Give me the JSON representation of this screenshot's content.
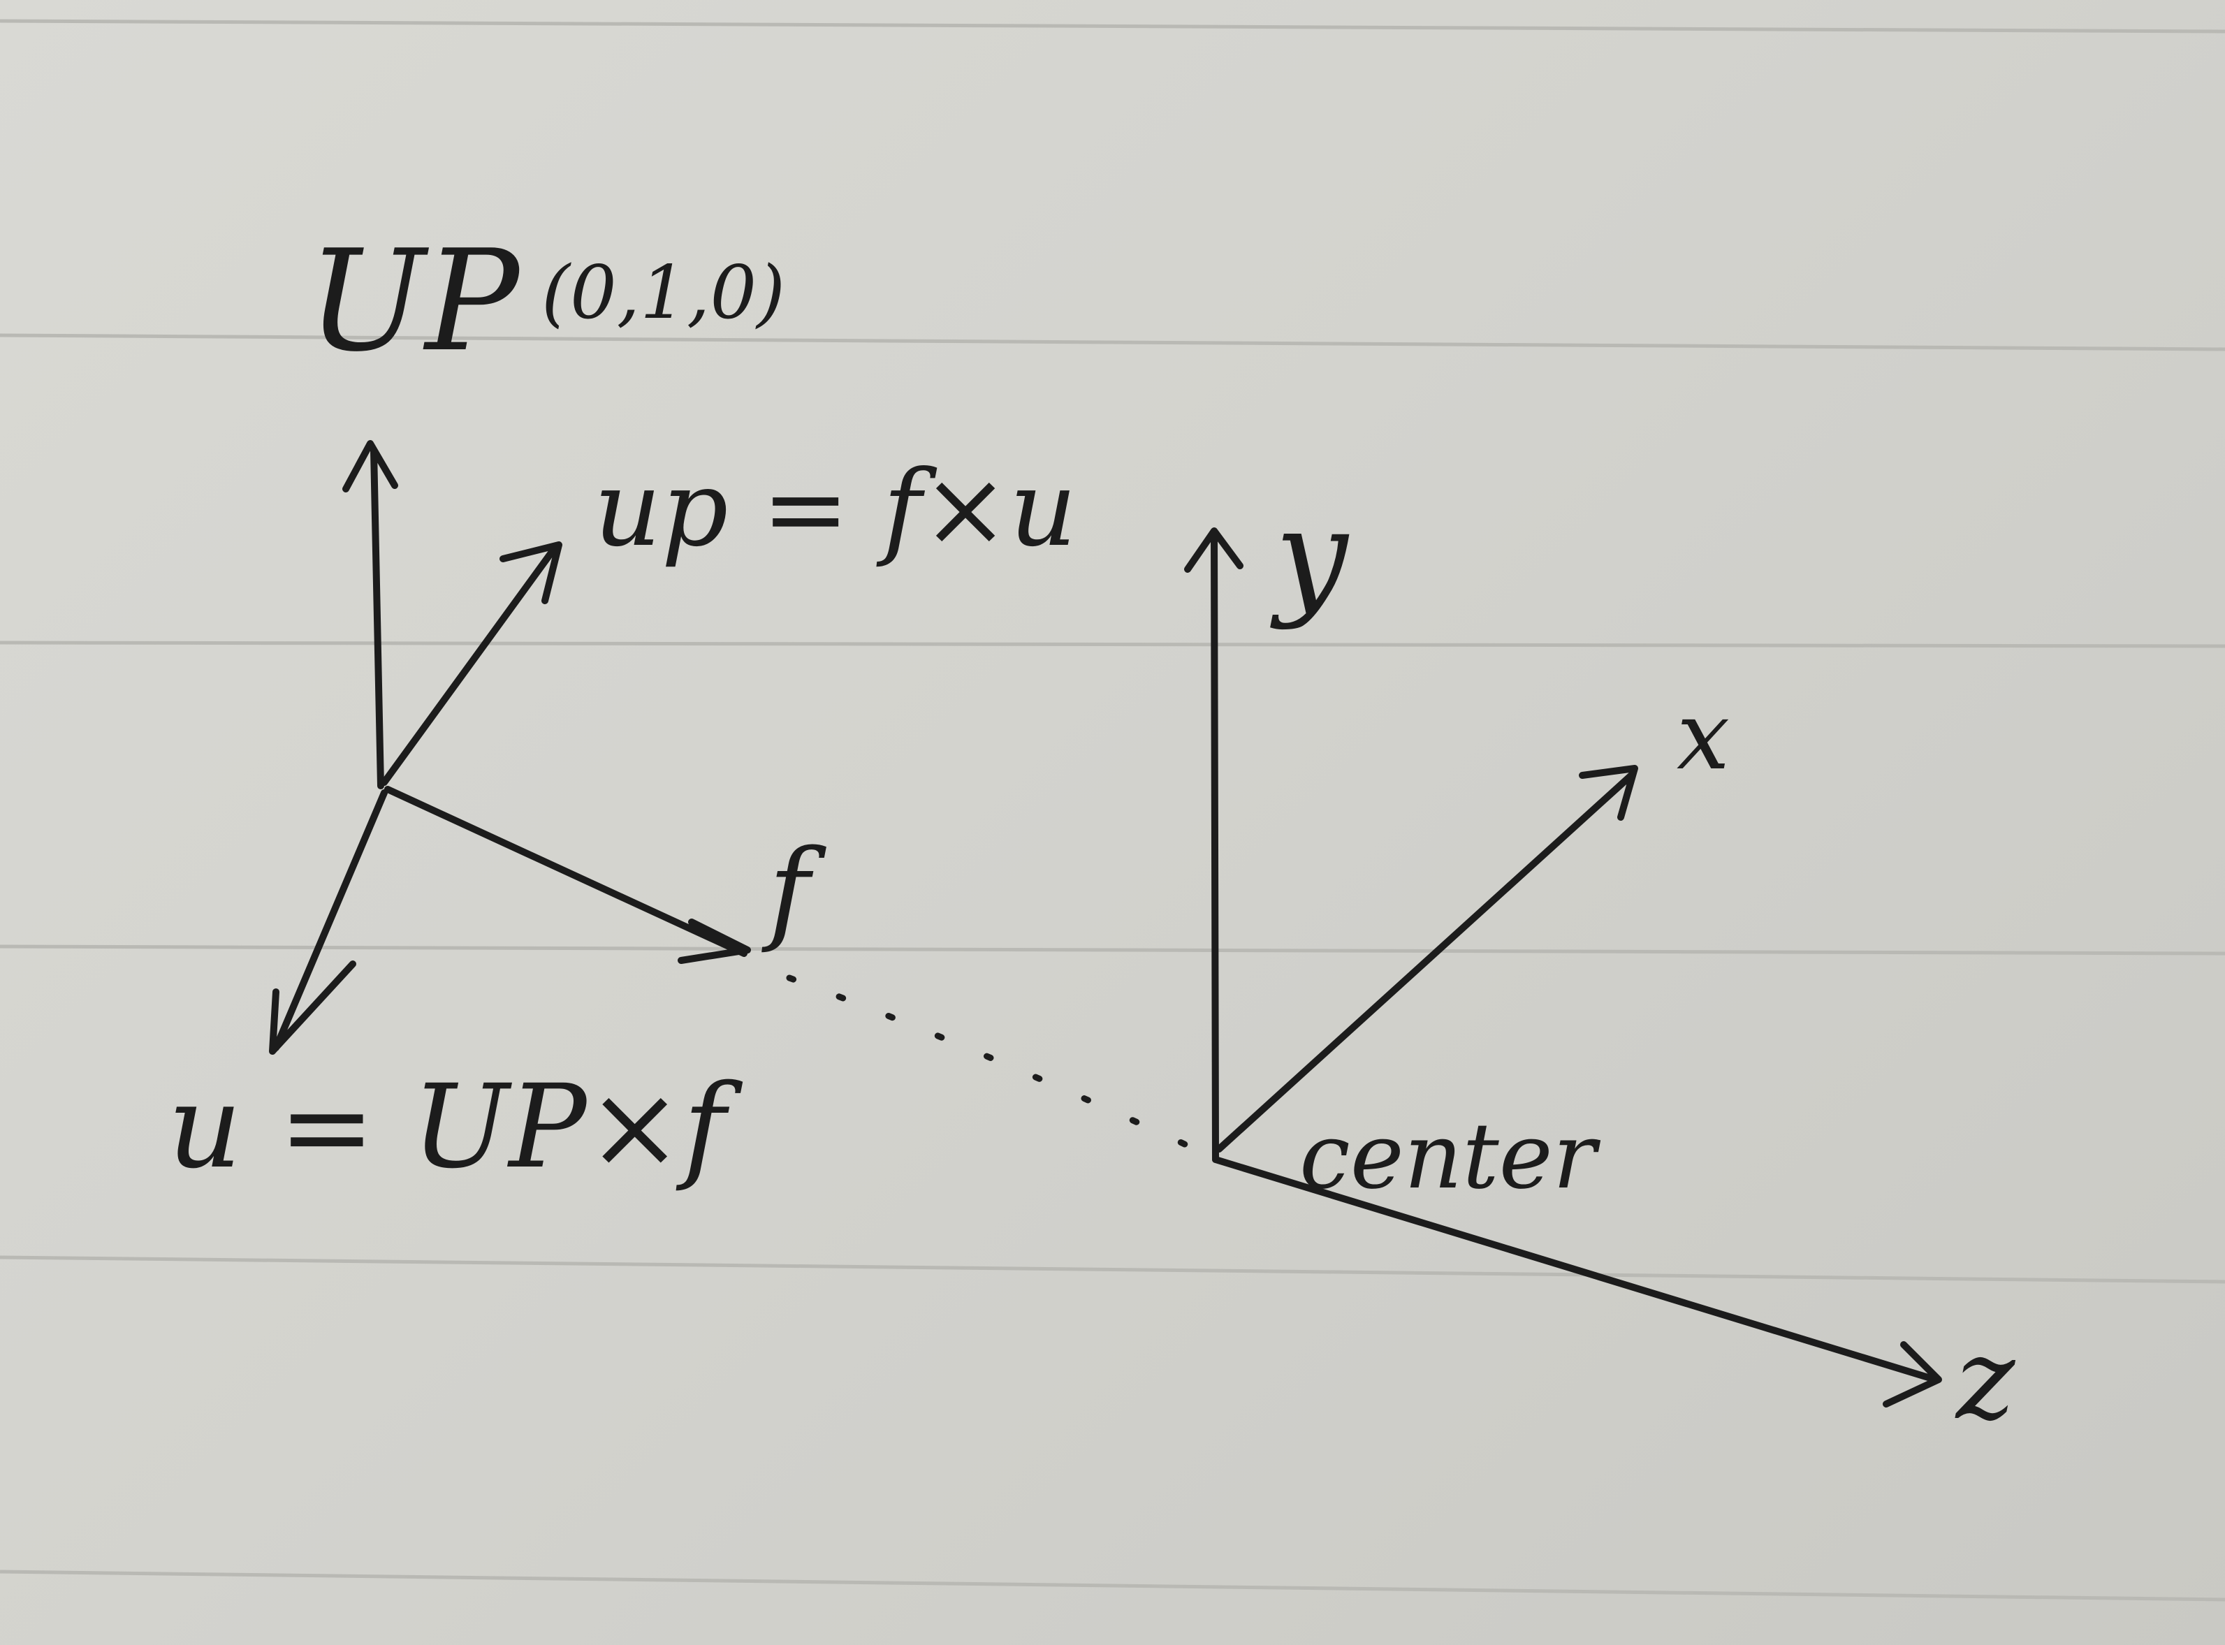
{
  "labels": {
    "up_world": "UP",
    "up_world_value": "(0,1,0)",
    "up_camera": "up = f×u",
    "forward": "f",
    "u_axis": "u = UP×f",
    "y_axis": "y",
    "x_axis": "x",
    "z_axis": "z",
    "center": "center"
  },
  "colors": {
    "paper": "#d5d5d0",
    "ruled_line": "#b9b9b4",
    "ink": "#1c1c1c"
  }
}
